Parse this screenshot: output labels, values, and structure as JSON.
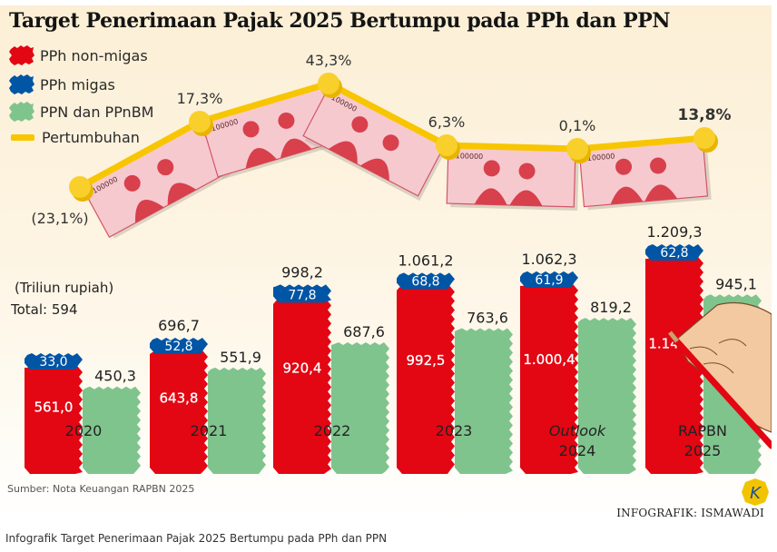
{
  "caption": "Infografik Target Penerimaan Pajak 2025 Bertumpu pada PPh dan PPN",
  "source": "Sumber: Nota Keuangan RAPBN 2025",
  "credit": "INFOGRAFIK: ISMAWADI",
  "logo_letter": "K",
  "colors": {
    "pph_non_migas": "#e30613",
    "pph_migas": "#0055a5",
    "ppn": "#7fc48d",
    "growth": "#f7c600",
    "banknote": "#f6c9cf",
    "banknote_portrait": "#d8404c"
  },
  "chart_data": {
    "type": "bar",
    "title": "Target Penerimaan Pajak 2025 Bertumpu pada PPh dan PPN",
    "unit_label": "(Triliun rupiah)",
    "first_total_label": "Total: 594",
    "xlabel": "",
    "ylabel": "",
    "ylim": [
      0,
      1300
    ],
    "grid": false,
    "legend_position": "top-left",
    "legend": [
      {
        "key": "pph_non_migas",
        "label": "PPh non-migas"
      },
      {
        "key": "pph_migas",
        "label": "PPh migas"
      },
      {
        "key": "ppn",
        "label": "PPN dan PPnBM"
      },
      {
        "key": "growth",
        "label": "Pertumbuhan"
      }
    ],
    "categories": [
      {
        "line1": "2020",
        "line2": "",
        "italic": false
      },
      {
        "line1": "2021",
        "line2": "",
        "italic": false
      },
      {
        "line1": "2022",
        "line2": "",
        "italic": false
      },
      {
        "line1": "2023",
        "line2": "",
        "italic": false
      },
      {
        "line1": "Outlook",
        "line2": "2024",
        "italic": true
      },
      {
        "line1": "RAPBN",
        "line2": "2025",
        "italic": false
      }
    ],
    "series": [
      {
        "name": "PPh non-migas",
        "stack": "pph",
        "values": [
          561.0,
          643.8,
          920.4,
          992.5,
          1000.4,
          1146.4
        ],
        "labels": [
          "561,0",
          "643,8",
          "920,4",
          "992,5",
          "1.000,4",
          "1.146,4"
        ]
      },
      {
        "name": "PPh migas",
        "stack": "pph",
        "values": [
          33.0,
          52.8,
          77.8,
          68.8,
          61.9,
          62.8
        ],
        "labels": [
          "33,0",
          "52,8",
          "77,8",
          "68,8",
          "61,9",
          "62,8"
        ]
      },
      {
        "name": "PPN dan PPnBM",
        "stack": "ppn",
        "values": [
          450.3,
          551.9,
          687.6,
          763.6,
          819.2,
          945.1
        ],
        "labels": [
          "450,3",
          "551,9",
          "687,6",
          "763,6",
          "819,2",
          "945,1"
        ]
      }
    ],
    "pph_totals": {
      "values": [
        594.0,
        696.7,
        998.2,
        1061.2,
        1062.3,
        1209.3
      ],
      "labels": [
        "",
        "696,7",
        "998,2",
        "1.061,2",
        "1.062,3",
        "1.209,3"
      ]
    },
    "growth": {
      "name": "Pertumbuhan",
      "values": [
        -23.1,
        17.3,
        43.3,
        6.3,
        0.1,
        13.8
      ],
      "labels": [
        "(23,1%)",
        "17,3%",
        "43,3%",
        "6,3%",
        "0,1%",
        "13,8%"
      ],
      "highlight_last": true
    }
  }
}
